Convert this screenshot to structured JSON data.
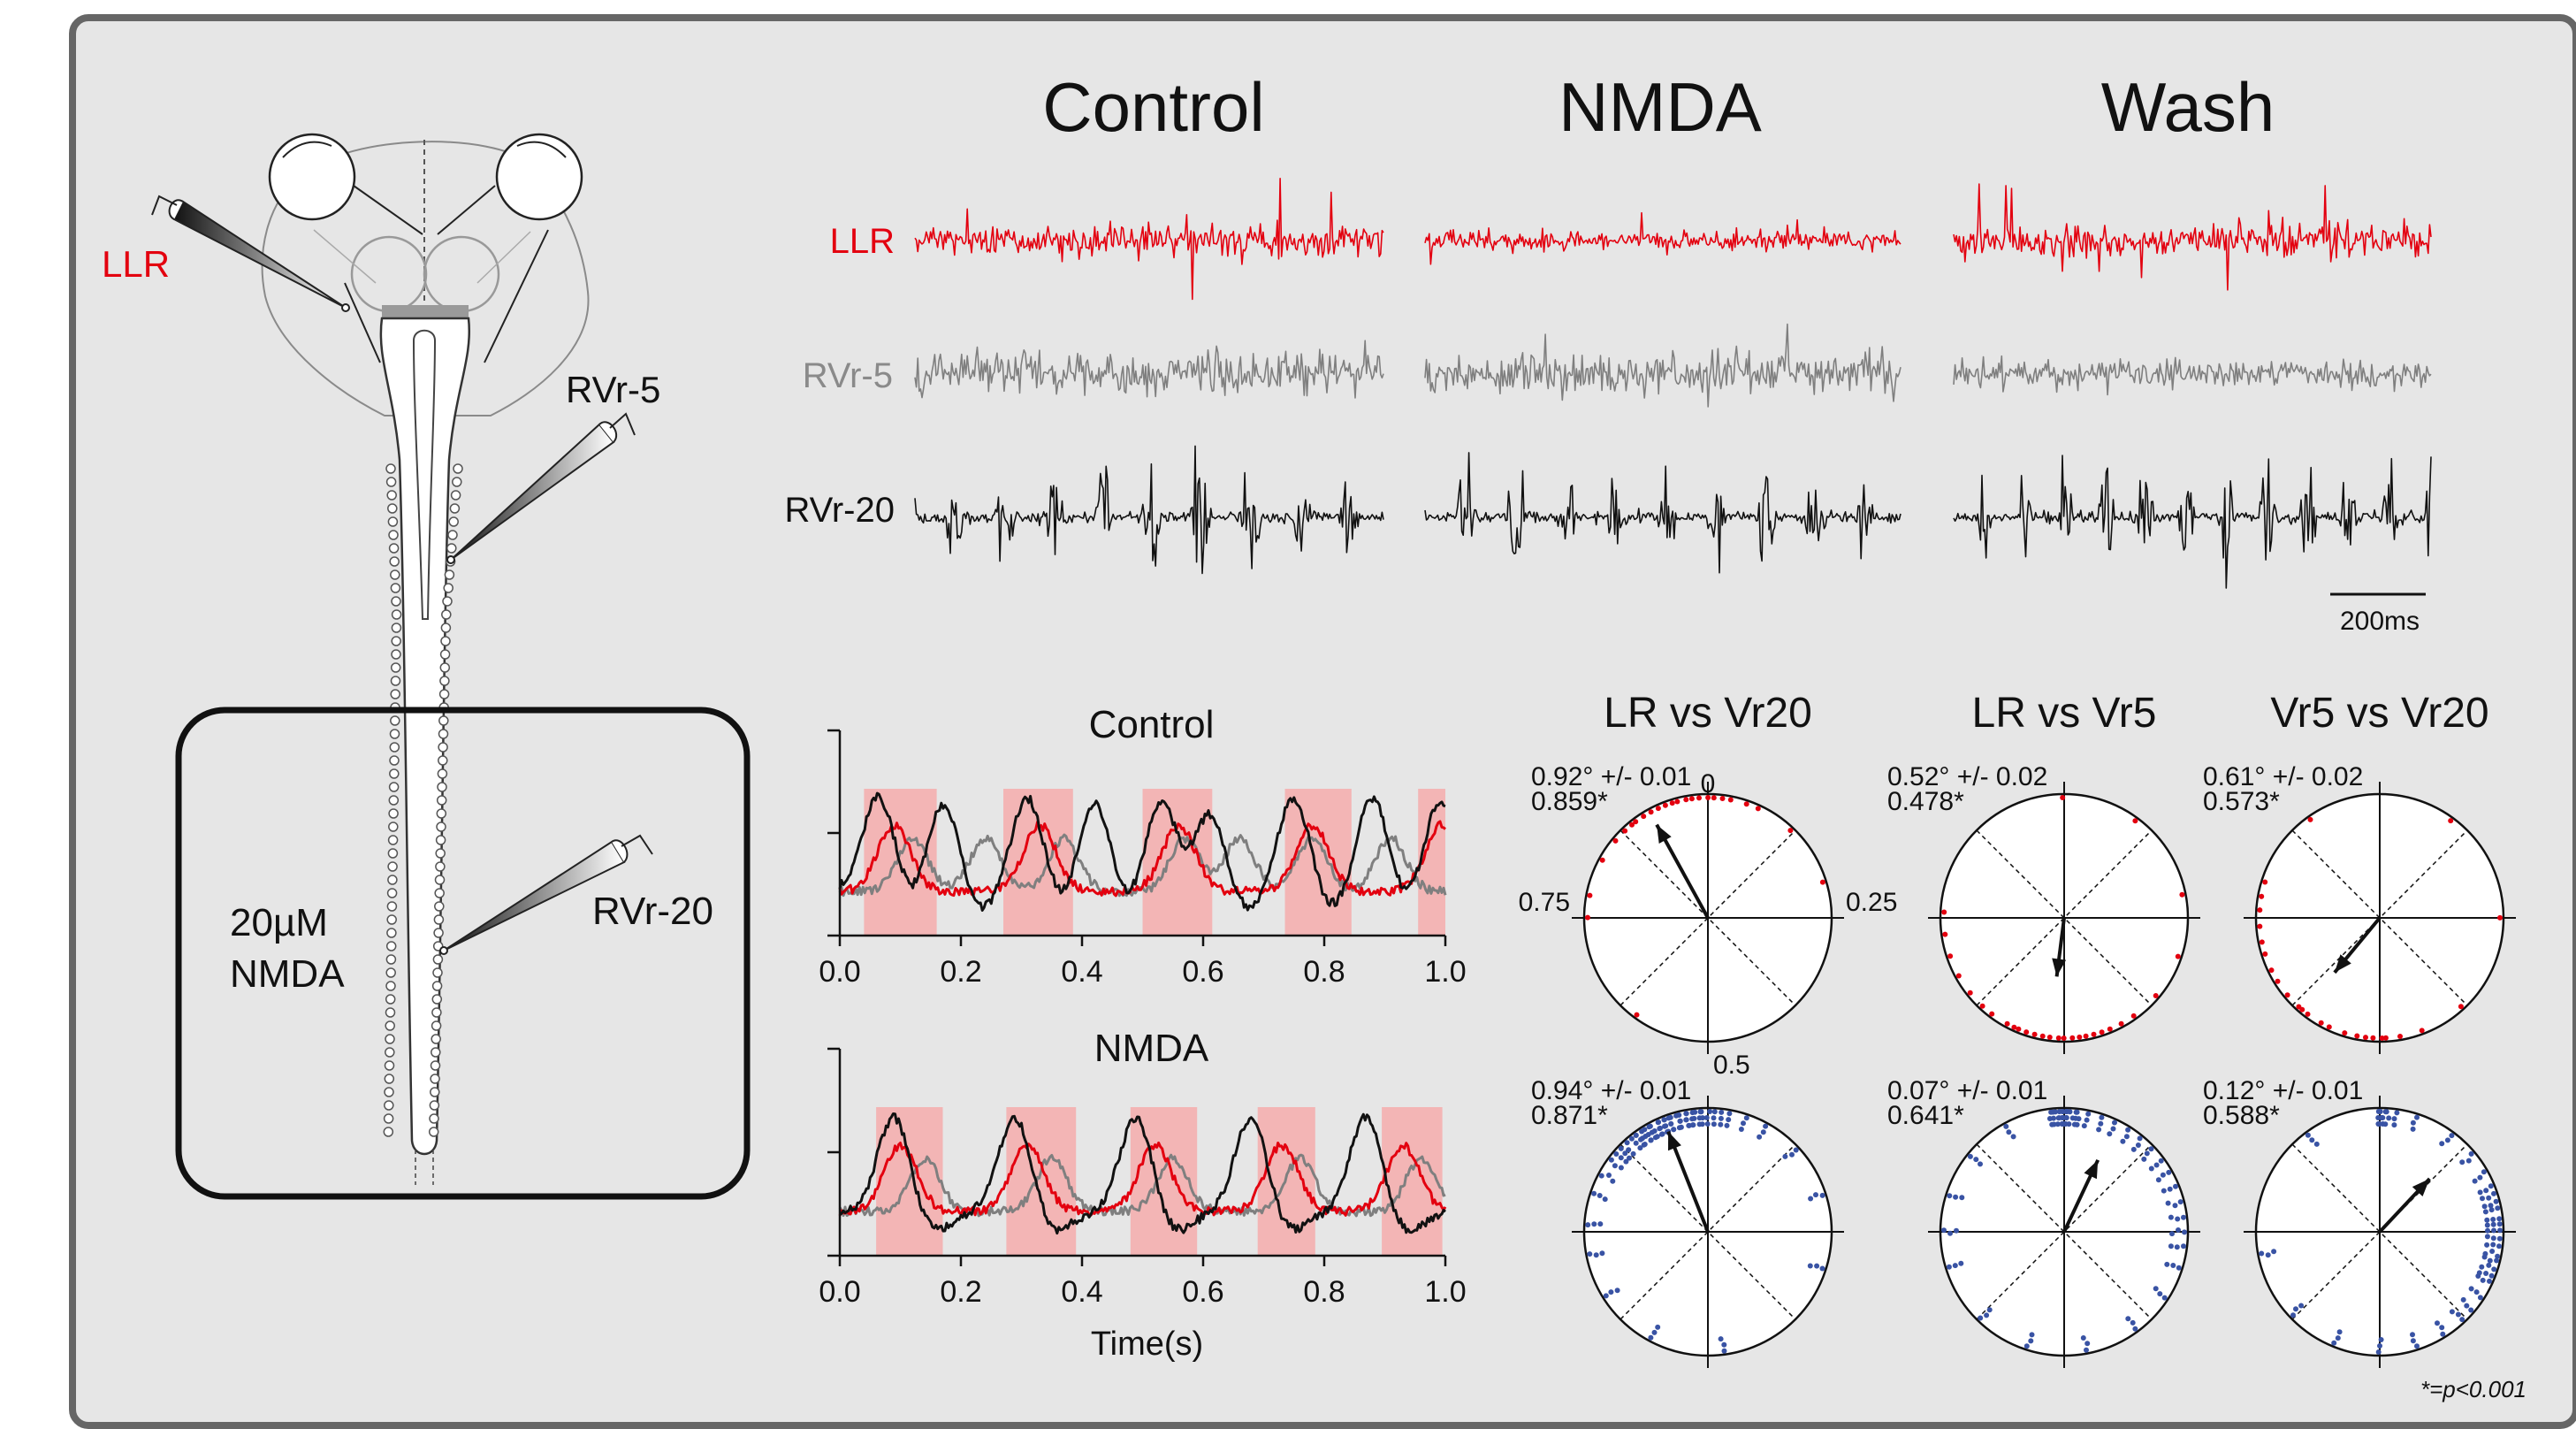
{
  "colors": {
    "llr": "#e3000f",
    "rvr5": "#7f7f7f",
    "rvr20": "#111111",
    "shade": "#f3b5b5",
    "blue": "#3953a4",
    "frame_bg": "#e6e6e6",
    "frame_border": "#666666"
  },
  "diagram": {
    "label_llr": "LLR",
    "label_rvr5": "RVr-5",
    "label_rvr20": "RVr-20",
    "bath_line1": "20µM",
    "bath_line2": "NMDA"
  },
  "traces": {
    "conditions": [
      "Control",
      "NMDA",
      "Wash"
    ],
    "rows": [
      {
        "label": "LLR",
        "color": "#e3000f"
      },
      {
        "label": "RVr-5",
        "color": "#7f7f7f"
      },
      {
        "label": "RVr-20",
        "color": "#111111"
      }
    ],
    "scalebar_label": "200ms"
  },
  "chart_data": [
    {
      "type": "line",
      "title": "Control",
      "xlabel": "",
      "xticks": [
        "0.0",
        "0.2",
        "0.4",
        "0.6",
        "0.8",
        "1.0"
      ],
      "xlim": [
        0,
        1
      ],
      "series_colors": [
        "#111111",
        "#e3000f",
        "#7f7f7f"
      ],
      "shaded_intervals": [
        [
          0.04,
          0.16
        ],
        [
          0.27,
          0.385
        ],
        [
          0.5,
          0.615
        ],
        [
          0.735,
          0.845
        ],
        [
          0.955,
          1.0
        ]
      ],
      "peaks": {
        "black": [
          0.065,
          0.17,
          0.31,
          0.42,
          0.53,
          0.61,
          0.75,
          0.88,
          0.99
        ],
        "red": [
          0.09,
          0.33,
          0.56,
          0.78,
          0.995
        ],
        "gray": [
          0.12,
          0.24,
          0.37,
          0.57,
          0.66,
          0.78,
          0.91
        ]
      }
    },
    {
      "type": "line",
      "title": "NMDA",
      "xlabel": "Time(s)",
      "xticks": [
        "0.0",
        "0.2",
        "0.4",
        "0.6",
        "0.8",
        "1.0"
      ],
      "xlim": [
        0,
        1
      ],
      "series_colors": [
        "#111111",
        "#e3000f",
        "#7f7f7f"
      ],
      "shaded_intervals": [
        [
          0.06,
          0.17
        ],
        [
          0.275,
          0.39
        ],
        [
          0.48,
          0.59
        ],
        [
          0.69,
          0.785
        ],
        [
          0.895,
          0.995
        ]
      ],
      "peaks": {
        "black": [
          0.09,
          0.29,
          0.49,
          0.68,
          0.87
        ],
        "red": [
          0.1,
          0.31,
          0.52,
          0.73,
          0.93
        ],
        "gray": [
          0.14,
          0.35,
          0.55,
          0.76,
          0.96
        ]
      }
    },
    {
      "type": "scatter",
      "title": "LR vs Vr20",
      "stat_line1": "0.92° +/- 0.01",
      "stat_line2": "0.859*",
      "axis_labels": {
        "top": "0",
        "right": "0.25",
        "bottom": "0.5",
        "left": "0.75"
      },
      "rows": [
        {
          "color": "#e3000f",
          "mean_phase": 0.92,
          "vector_length": 0.859,
          "points": [
            0.78,
            0.83,
            0.86,
            0.88,
            0.89,
            0.9,
            0.91,
            0.92,
            0.93,
            0.94,
            0.95,
            0.96,
            0.97,
            0.98,
            0.99,
            0.0,
            0.01,
            0.02,
            0.03,
            0.05,
            0.07,
            0.12,
            0.2,
            0.6,
            0.75
          ]
        },
        {
          "stat_line1": "0.94° +/- 0.01",
          "stat_line2": "0.871*",
          "color": "#3953a4",
          "mean_phase": 0.94,
          "vector_length": 0.871,
          "points": [
            0.72,
            0.76,
            0.8,
            0.83,
            0.85,
            0.86,
            0.87,
            0.88,
            0.89,
            0.9,
            0.9,
            0.91,
            0.91,
            0.92,
            0.92,
            0.93,
            0.93,
            0.94,
            0.94,
            0.95,
            0.95,
            0.96,
            0.96,
            0.97,
            0.97,
            0.98,
            0.98,
            0.99,
            0.99,
            0.0,
            0.01,
            0.02,
            0.03,
            0.05,
            0.08,
            0.13,
            0.2,
            0.3,
            0.48,
            0.58,
            0.66
          ]
        }
      ]
    },
    {
      "type": "scatter",
      "title": "LR vs Vr5",
      "stat_line1": "0.52° +/- 0.02",
      "stat_line2": "0.478*",
      "rows": [
        {
          "color": "#e3000f",
          "mean_phase": 0.52,
          "vector_length": 0.478,
          "points": [
            0.3,
            0.36,
            0.4,
            0.42,
            0.44,
            0.45,
            0.46,
            0.47,
            0.48,
            0.49,
            0.5,
            0.51,
            0.52,
            0.53,
            0.54,
            0.55,
            0.56,
            0.57,
            0.58,
            0.6,
            0.62,
            0.64,
            0.67,
            0.7,
            0.73,
            0.76,
            0.0,
            0.1,
            0.22
          ]
        },
        {
          "stat_line1": "0.07° +/- 0.01",
          "stat_line2": "0.641*",
          "color": "#3953a4",
          "mean_phase": 0.07,
          "vector_length": 0.641,
          "points": [
            0.0,
            0.0,
            0.0,
            0.0,
            0.005,
            0.995,
            0.01,
            0.99,
            0.015,
            0.985,
            0.02,
            0.98,
            0.03,
            0.05,
            0.07,
            0.09,
            0.11,
            0.13,
            0.15,
            0.17,
            0.19,
            0.21,
            0.23,
            0.25,
            0.27,
            0.3,
            0.34,
            0.4,
            0.47,
            0.55,
            0.62,
            0.7,
            0.75,
            0.8,
            0.86,
            0.92
          ]
        }
      ]
    },
    {
      "type": "scatter",
      "title": "Vr5 vs Vr20",
      "stat_line1": "0.61° +/- 0.02",
      "stat_line2": "0.573*",
      "rows": [
        {
          "color": "#e3000f",
          "mean_phase": 0.61,
          "vector_length": 0.573,
          "points": [
            0.44,
            0.47,
            0.49,
            0.5,
            0.51,
            0.52,
            0.53,
            0.55,
            0.57,
            0.58,
            0.6,
            0.61,
            0.62,
            0.64,
            0.66,
            0.68,
            0.7,
            0.72,
            0.74,
            0.76,
            0.78,
            0.8,
            0.9,
            0.1,
            0.25,
            0.38
          ]
        },
        {
          "stat_line1": "0.12° +/- 0.01",
          "stat_line2": "0.588*",
          "color": "#3953a4",
          "mean_phase": 0.12,
          "vector_length": 0.588,
          "points": [
            0.0,
            0.0,
            0.0,
            0.005,
            0.01,
            0.02,
            0.05,
            0.1,
            0.14,
            0.17,
            0.19,
            0.2,
            0.21,
            0.22,
            0.23,
            0.24,
            0.25,
            0.26,
            0.27,
            0.28,
            0.29,
            0.3,
            0.31,
            0.32,
            0.34,
            0.36,
            0.38,
            0.41,
            0.45,
            0.5,
            0.56,
            0.63,
            0.72,
            0.9
          ]
        }
      ]
    }
  ],
  "footnote": "*=p<0.001"
}
